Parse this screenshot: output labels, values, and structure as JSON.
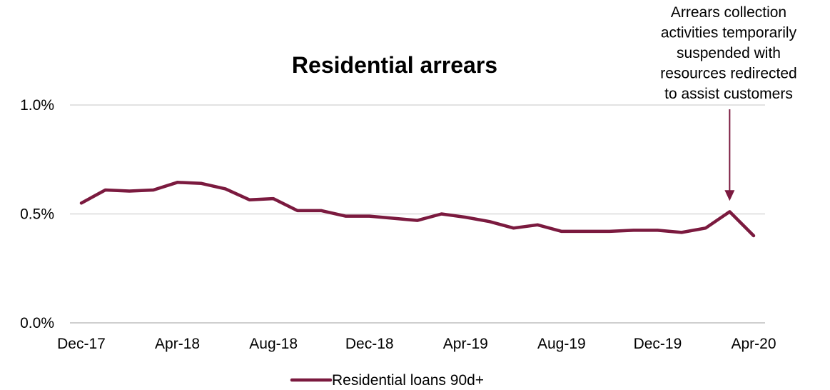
{
  "chart_data": {
    "type": "line",
    "title": "Residential arrears",
    "xlabel": "",
    "ylabel": "",
    "x": [
      "Dec-17",
      "Jan-18",
      "Feb-18",
      "Mar-18",
      "Apr-18",
      "May-18",
      "Jun-18",
      "Jul-18",
      "Aug-18",
      "Sep-18",
      "Oct-18",
      "Nov-18",
      "Dec-18",
      "Jan-19",
      "Feb-19",
      "Mar-19",
      "Apr-19",
      "May-19",
      "Jun-19",
      "Jul-19",
      "Aug-19",
      "Sep-19",
      "Oct-19",
      "Nov-19",
      "Dec-19",
      "Jan-20",
      "Feb-20",
      "Mar-20",
      "Apr-20"
    ],
    "x_tick_labels": [
      "Dec-17",
      "Apr-18",
      "Aug-18",
      "Dec-18",
      "Apr-19",
      "Aug-19",
      "Dec-19",
      "Apr-20"
    ],
    "y_tick_labels": [
      "0.0%",
      "0.5%",
      "1.0%"
    ],
    "ylim": [
      0,
      1.0
    ],
    "y_unit": "%",
    "grid": "horizontal",
    "legend_position": "bottom",
    "series": [
      {
        "name": "Residential loans 90d+",
        "color": "#7b1a3f",
        "values": [
          0.55,
          0.61,
          0.605,
          0.61,
          0.645,
          0.64,
          0.615,
          0.565,
          0.57,
          0.515,
          0.515,
          0.49,
          0.49,
          0.48,
          0.47,
          0.5,
          0.485,
          0.465,
          0.435,
          0.45,
          0.42,
          0.42,
          0.42,
          0.425,
          0.425,
          0.415,
          0.435,
          0.51,
          0.4
        ]
      }
    ],
    "annotations": [
      {
        "text_lines": [
          "Arrears collection",
          "activities temporarily",
          "suspended with",
          "resources redirected",
          "to assist customers"
        ],
        "x": "Mar-20",
        "y": 0.56,
        "arrow": "down"
      }
    ]
  }
}
